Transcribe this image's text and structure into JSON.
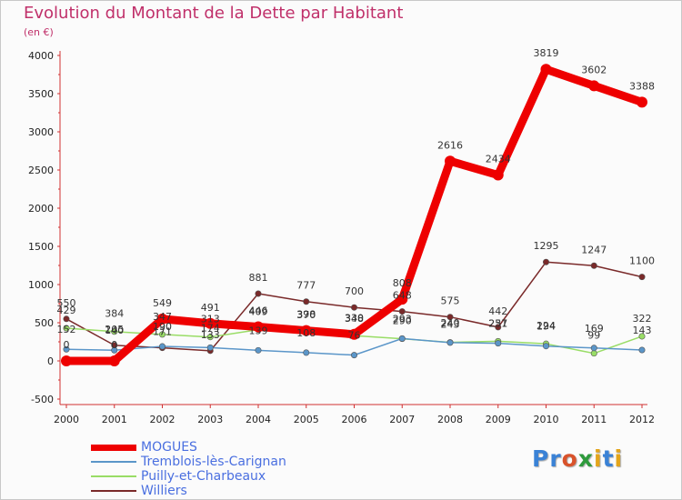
{
  "header": {
    "title": "Evolution du Montant de la Dette par Habitant",
    "subtitle": "(en €)"
  },
  "logo": {
    "text": "Proxiti",
    "colors": [
      "#3a82d6",
      "#3a82d6",
      "#d9532b",
      "#2e9a3c",
      "#e3a51b",
      "#3a82d6",
      "#e3a51b"
    ]
  },
  "chart_data": {
    "type": "line",
    "title": "Evolution du Montant de la Dette par Habitant",
    "ylabel": "(en €)",
    "xlabel": "",
    "ylim": [
      -500,
      4000
    ],
    "yticks": [
      -500,
      0,
      500,
      1000,
      1500,
      2000,
      2500,
      3000,
      3500,
      4000
    ],
    "x": [
      "2000",
      "2001",
      "2002",
      "2003",
      "2004",
      "2005",
      "2006",
      "2007",
      "2008",
      "2009",
      "2010",
      "2011",
      "2012"
    ],
    "grid": false,
    "legend_position": "bottom-left",
    "series": [
      {
        "name": "MOGUES",
        "color": "#ee0000",
        "values": [
          0,
          0,
          549,
          491,
          446,
          398,
          348,
          808,
          2616,
          2434,
          3819,
          3602,
          3388
        ],
        "labels": [
          "0",
          "0",
          "549",
          "491",
          "446",
          "398",
          "348",
          "808",
          "2616",
          "2434",
          "3819",
          "3602",
          "3388"
        ]
      },
      {
        "name": "Tremblois-lès-Carignan",
        "color": "#5b96c9",
        "values": [
          152,
          140,
          190,
          174,
          139,
          108,
          76,
          293,
          240,
          231,
          194,
          169,
          143
        ],
        "labels": [
          "152",
          "140",
          "190",
          "174",
          "139",
          "108",
          "76",
          "293",
          "240",
          "231",
          "194",
          "169",
          "143"
        ]
      },
      {
        "name": "Puilly-et-Charbeaux",
        "color": "#99dd66",
        "values": [
          429,
          384,
          347,
          313,
          409,
          370,
          330,
          290,
          243,
          257,
          224,
          99,
          322
        ],
        "labels": [
          "429",
          "384",
          "347",
          "313",
          "409",
          "370",
          "330",
          "290",
          "243",
          "257",
          "224",
          "99",
          "322"
        ]
      },
      {
        "name": "Williers",
        "color": "#7a2a2a",
        "values": [
          550,
          205,
          171,
          133,
          881,
          777,
          700,
          648,
          575,
          442,
          1295,
          1247,
          1100
        ],
        "labels": [
          "550",
          "205",
          "171",
          "133",
          "881",
          "777",
          "700",
          "648",
          "575",
          "442",
          "1295",
          "1247",
          "1100"
        ]
      }
    ]
  }
}
